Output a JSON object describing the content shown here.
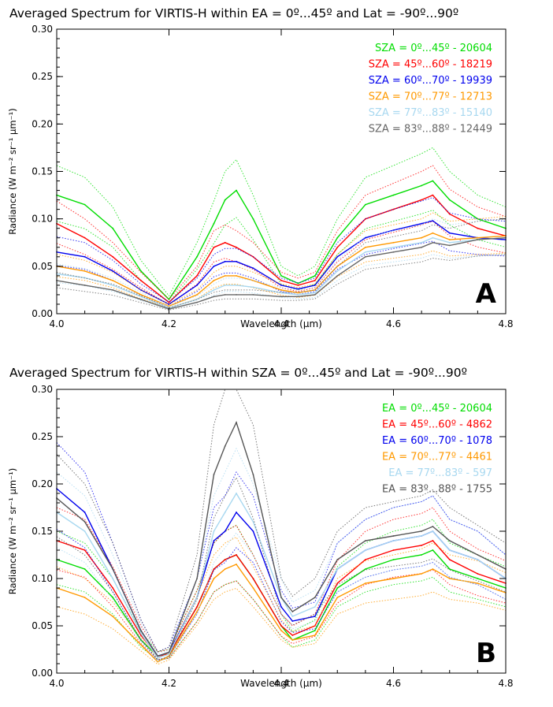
{
  "chart_data": [
    {
      "type": "line",
      "title": "Averaged Spectrum for VIRTIS-H within EA = 0º...45º and Lat = -90º...90º",
      "xlabel": "Wavelength (μm)",
      "ylabel": "Radiance (W m⁻² sr⁻¹ μm⁻¹)",
      "panel_label": "A",
      "xlim": [
        4.0,
        4.8
      ],
      "ylim": [
        0.0,
        0.3
      ],
      "x_ticks": [
        "4.0",
        "4.2",
        "4.4",
        "4.6",
        "4.8"
      ],
      "y_ticks": [
        "0.00",
        "0.05",
        "0.10",
        "0.15",
        "0.20",
        "0.25",
        "0.30"
      ],
      "grid": false,
      "legend_position": "top-right",
      "x": [
        4.0,
        4.05,
        4.1,
        4.15,
        4.2,
        4.25,
        4.28,
        4.3,
        4.32,
        4.35,
        4.4,
        4.43,
        4.46,
        4.5,
        4.55,
        4.6,
        4.65,
        4.67,
        4.7,
        4.75,
        4.8
      ],
      "series": [
        {
          "name": "SZA = 0º...45º - 20604",
          "color": "#00dd00",
          "values": [
            0.125,
            0.115,
            0.09,
            0.045,
            0.015,
            0.06,
            0.095,
            0.12,
            0.13,
            0.1,
            0.04,
            0.032,
            0.04,
            0.08,
            0.115,
            0.125,
            0.135,
            0.14,
            0.12,
            0.1,
            0.09
          ]
        },
        {
          "name": "SZA = 45º...60º - 18219",
          "color": "#ff0000",
          "values": [
            0.095,
            0.08,
            0.06,
            0.035,
            0.012,
            0.04,
            0.07,
            0.075,
            0.07,
            0.06,
            0.035,
            0.03,
            0.035,
            0.07,
            0.1,
            0.11,
            0.12,
            0.125,
            0.105,
            0.09,
            0.082
          ]
        },
        {
          "name": "SZA = 60º...70º - 19939",
          "color": "#0000ee",
          "values": [
            0.065,
            0.06,
            0.045,
            0.025,
            0.01,
            0.03,
            0.05,
            0.055,
            0.055,
            0.048,
            0.03,
            0.026,
            0.03,
            0.06,
            0.08,
            0.088,
            0.095,
            0.098,
            0.085,
            0.08,
            0.078
          ]
        },
        {
          "name": "SZA = 70º...77º - 12713",
          "color": "#ff9900",
          "values": [
            0.05,
            0.045,
            0.035,
            0.02,
            0.008,
            0.02,
            0.035,
            0.04,
            0.04,
            0.035,
            0.025,
            0.022,
            0.025,
            0.05,
            0.07,
            0.075,
            0.08,
            0.085,
            0.078,
            0.08,
            0.082
          ]
        },
        {
          "name": "SZA = 77º...83º - 15140",
          "color": "#a8d8f0",
          "values": [
            0.042,
            0.038,
            0.03,
            0.018,
            0.006,
            0.015,
            0.025,
            0.03,
            0.03,
            0.028,
            0.022,
            0.02,
            0.022,
            0.045,
            0.065,
            0.07,
            0.075,
            0.08,
            0.075,
            0.078,
            0.08
          ]
        },
        {
          "name": "SZA = 83º...88º - 12449",
          "color": "#666666",
          "values": [
            0.035,
            0.03,
            0.025,
            0.015,
            0.005,
            0.012,
            0.018,
            0.02,
            0.02,
            0.02,
            0.018,
            0.018,
            0.02,
            0.04,
            0.06,
            0.065,
            0.07,
            0.075,
            0.072,
            0.078,
            0.08
          ]
        }
      ]
    },
    {
      "type": "line",
      "title": "Averaged Spectrum for VIRTIS-H within SZA = 0º...45º and Lat = -90º...90º",
      "xlabel": "Wavelength (μm)",
      "ylabel": "Radiance (W m⁻² sr⁻¹ μm⁻¹)",
      "panel_label": "B",
      "xlim": [
        4.0,
        4.8
      ],
      "ylim": [
        0.0,
        0.3
      ],
      "x_ticks": [
        "4.0",
        "4.2",
        "4.4",
        "4.6",
        "4.8"
      ],
      "y_ticks": [
        "0.00",
        "0.05",
        "0.10",
        "0.15",
        "0.20",
        "0.25",
        "0.30"
      ],
      "grid": false,
      "legend_position": "top-right",
      "x": [
        4.0,
        4.05,
        4.1,
        4.15,
        4.18,
        4.2,
        4.25,
        4.28,
        4.3,
        4.32,
        4.35,
        4.4,
        4.42,
        4.46,
        4.5,
        4.55,
        4.6,
        4.65,
        4.67,
        4.7,
        4.75,
        4.8
      ],
      "series": [
        {
          "name": "EA = 0º...45º - 20604",
          "color": "#00dd00",
          "values": [
            0.12,
            0.11,
            0.08,
            0.035,
            0.018,
            0.02,
            0.07,
            0.11,
            0.12,
            0.125,
            0.1,
            0.05,
            0.035,
            0.045,
            0.09,
            0.11,
            0.12,
            0.125,
            0.13,
            0.11,
            0.1,
            0.09
          ]
        },
        {
          "name": "EA = 45º...60º - 4862",
          "color": "#ff0000",
          "values": [
            0.14,
            0.13,
            0.09,
            0.04,
            0.018,
            0.02,
            0.07,
            0.11,
            0.12,
            0.125,
            0.1,
            0.05,
            0.04,
            0.05,
            0.095,
            0.12,
            0.13,
            0.135,
            0.14,
            0.12,
            0.105,
            0.095
          ]
        },
        {
          "name": "EA = 60º...70º - 1078",
          "color": "#0000ee",
          "values": [
            0.195,
            0.17,
            0.11,
            0.045,
            0.018,
            0.022,
            0.08,
            0.14,
            0.15,
            0.17,
            0.15,
            0.07,
            0.055,
            0.06,
            0.11,
            0.13,
            0.14,
            0.145,
            0.15,
            0.13,
            0.12,
            0.1
          ]
        },
        {
          "name": "EA = 70º...77º - 4461",
          "color": "#ff9900",
          "values": [
            0.09,
            0.08,
            0.06,
            0.03,
            0.012,
            0.018,
            0.065,
            0.1,
            0.11,
            0.115,
            0.09,
            0.045,
            0.035,
            0.04,
            0.08,
            0.095,
            0.1,
            0.105,
            0.11,
            0.1,
            0.095,
            0.085
          ]
        },
        {
          "name": "EA = 77º...83º - 597",
          "color": "#a8d8f0",
          "values": [
            0.17,
            0.15,
            0.1,
            0.042,
            0.016,
            0.02,
            0.08,
            0.15,
            0.17,
            0.19,
            0.16,
            0.08,
            0.06,
            0.07,
            0.11,
            0.13,
            0.14,
            0.145,
            0.15,
            0.13,
            0.12,
            0.1
          ]
        },
        {
          "name": "EA = 83º...88º - 1755",
          "color": "#555555",
          "values": [
            0.185,
            0.16,
            0.11,
            0.045,
            0.018,
            0.022,
            0.1,
            0.21,
            0.24,
            0.265,
            0.21,
            0.08,
            0.065,
            0.08,
            0.12,
            0.14,
            0.145,
            0.15,
            0.155,
            0.14,
            0.125,
            0.11
          ]
        }
      ]
    }
  ]
}
